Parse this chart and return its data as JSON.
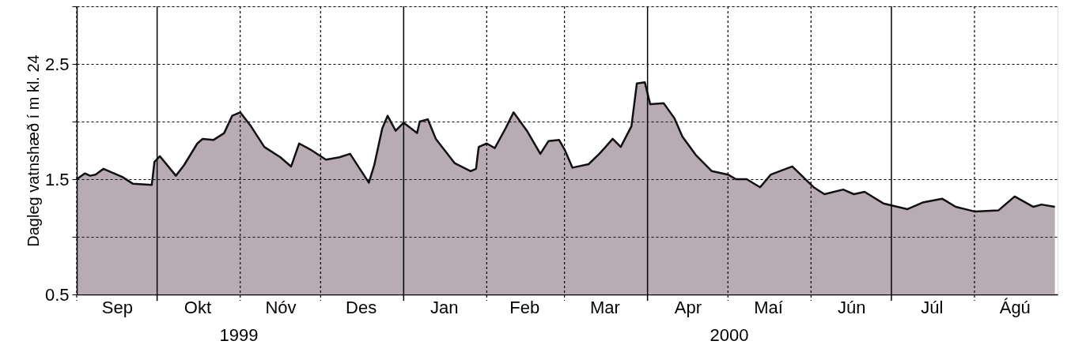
{
  "chart_data": {
    "type": "area",
    "ylabel": "Dagleg vatnshæð í m kl. 24",
    "series": [
      {
        "color": "#b9abb3",
        "x": [
          "1999-09-01",
          "1999-09-04",
          "1999-09-06",
          "1999-09-08",
          "1999-09-11",
          "1999-09-13",
          "1999-09-18",
          "1999-09-22",
          "1999-09-29",
          "1999-09-30",
          "1999-10-02",
          "1999-10-08",
          "1999-10-11",
          "1999-10-16",
          "1999-10-18",
          "1999-10-22",
          "1999-10-26",
          "1999-10-29",
          "1999-11-01",
          "1999-11-05",
          "1999-11-10",
          "1999-11-16",
          "1999-11-20",
          "1999-11-23",
          "1999-11-27",
          "1999-12-03",
          "1999-12-08",
          "1999-12-12",
          "1999-12-19",
          "1999-12-21",
          "1999-12-24",
          "1999-12-26",
          "1999-12-29",
          "2000-01-01",
          "2000-01-06",
          "2000-01-07",
          "2000-01-10",
          "2000-01-13",
          "2000-01-20",
          "2000-01-26",
          "2000-01-28",
          "2000-01-29",
          "2000-02-01",
          "2000-02-04",
          "2000-02-08",
          "2000-02-11",
          "2000-02-16",
          "2000-02-21",
          "2000-02-24",
          "2000-02-28",
          "2000-03-01",
          "2000-03-04",
          "2000-03-10",
          "2000-03-14",
          "2000-03-19",
          "2000-03-22",
          "2000-03-26",
          "2000-03-28",
          "2000-03-31",
          "2000-04-02",
          "2000-04-07",
          "2000-04-11",
          "2000-04-14",
          "2000-04-19",
          "2000-04-25",
          "2000-05-01",
          "2000-05-04",
          "2000-05-08",
          "2000-05-13",
          "2000-05-17",
          "2000-05-25",
          "2000-06-02",
          "2000-06-06",
          "2000-06-13",
          "2000-06-17",
          "2000-06-21",
          "2000-06-28",
          "2000-07-07",
          "2000-07-13",
          "2000-07-20",
          "2000-07-25",
          "2000-08-01",
          "2000-08-10",
          "2000-08-16",
          "2000-08-23",
          "2000-08-26",
          "2000-08-31"
        ],
        "values": [
          1.5,
          1.55,
          1.53,
          1.54,
          1.59,
          1.57,
          1.52,
          1.46,
          1.45,
          1.65,
          1.7,
          1.53,
          1.62,
          1.81,
          1.85,
          1.84,
          1.9,
          2.05,
          2.08,
          1.96,
          1.78,
          1.69,
          1.61,
          1.81,
          1.76,
          1.67,
          1.69,
          1.72,
          1.47,
          1.62,
          1.94,
          2.05,
          1.92,
          1.99,
          1.9,
          2.0,
          2.02,
          1.85,
          1.64,
          1.57,
          1.59,
          1.78,
          1.81,
          1.77,
          1.94,
          2.08,
          1.92,
          1.72,
          1.83,
          1.84,
          1.76,
          1.6,
          1.63,
          1.72,
          1.85,
          1.78,
          1.96,
          2.33,
          2.34,
          2.15,
          2.16,
          2.03,
          1.87,
          1.71,
          1.57,
          1.54,
          1.5,
          1.5,
          1.43,
          1.54,
          1.61,
          1.43,
          1.37,
          1.41,
          1.37,
          1.39,
          1.29,
          1.24,
          1.3,
          1.33,
          1.26,
          1.22,
          1.23,
          1.35,
          1.26,
          1.28,
          1.26
        ]
      }
    ],
    "xlim": [
      "1999-09-01",
      "2000-09-01"
    ],
    "xticks": [
      {
        "value": "1999-09-01",
        "label": null
      },
      {
        "value": "1999-09-16",
        "label": "Sep"
      },
      {
        "value": "1999-10-16",
        "label": "Okt"
      },
      {
        "value": "1999-11-01",
        "label": null
      },
      {
        "value": "1999-11-16",
        "label": "Nóv"
      },
      {
        "value": "1999-12-01",
        "label": null
      },
      {
        "value": "1999-12-16",
        "label": "Des"
      },
      {
        "value": "2000-01-16",
        "label": "Jan"
      },
      {
        "value": "2000-02-01",
        "label": null
      },
      {
        "value": "2000-02-15",
        "label": "Feb"
      },
      {
        "value": "2000-03-01",
        "label": null
      },
      {
        "value": "2000-03-16",
        "label": "Mar"
      },
      {
        "value": "2000-04-16",
        "label": "Apr"
      },
      {
        "value": "2000-05-01",
        "label": null
      },
      {
        "value": "2000-05-16",
        "label": "Maí"
      },
      {
        "value": "2000-06-01",
        "label": null
      },
      {
        "value": "2000-06-16",
        "label": "Jún"
      },
      {
        "value": "2000-07-16",
        "label": "Júl"
      },
      {
        "value": "2000-08-01",
        "label": null
      },
      {
        "value": "2000-08-16",
        "label": "Ágú"
      }
    ],
    "ylim": [
      0.5,
      3.0
    ],
    "yticks": [
      0.5,
      {
        "value": 1.0,
        "label": null
      },
      1.5,
      {
        "value": 2.0,
        "label": null
      },
      2.5,
      {
        "value": 3.0,
        "label": null
      }
    ],
    "grid": true,
    "line_style": "solid",
    "ref_lines": [
      {
        "axis": "x",
        "value": "1999-10-01",
        "color": "#000000",
        "line_style": "solid"
      },
      {
        "axis": "x",
        "value": "2000-01-01",
        "color": "#000000",
        "line_style": "solid"
      },
      {
        "axis": "x",
        "value": "2000-04-01",
        "color": "#000000",
        "line_style": "solid"
      },
      {
        "axis": "x",
        "value": "2000-07-01",
        "color": "#000000",
        "line_style": "solid"
      }
    ],
    "annotations": [
      "1999",
      "2000"
    ]
  }
}
